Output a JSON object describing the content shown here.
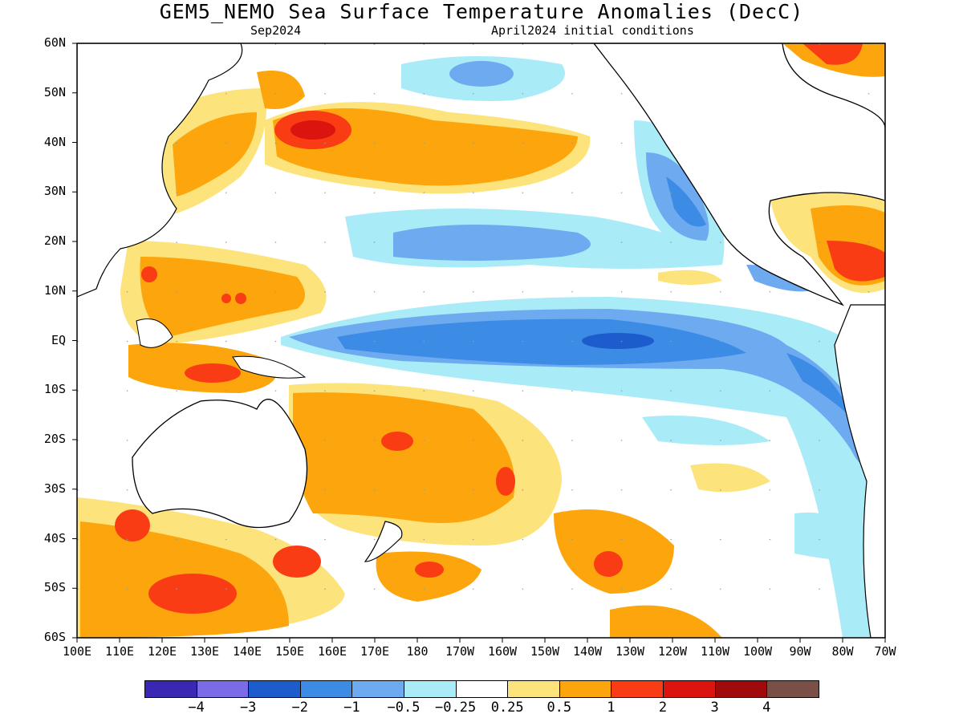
{
  "title": "GEM5_NEMO Sea Surface Temperature Anomalies (DecC)",
  "subtitle_left": "Sep2024",
  "subtitle_right": "April2024 initial conditions",
  "lat_labels": [
    "60N",
    "50N",
    "40N",
    "30N",
    "20N",
    "10N",
    "EQ",
    "10S",
    "20S",
    "30S",
    "40S",
    "50S",
    "60S"
  ],
  "lon_labels": [
    "100E",
    "110E",
    "120E",
    "130E",
    "140E",
    "150E",
    "160E",
    "170E",
    "180",
    "170W",
    "160W",
    "150W",
    "140W",
    "130W",
    "120W",
    "110W",
    "100W",
    "90W",
    "80W",
    "70W"
  ],
  "colorbar": {
    "colors": [
      "#3a28b4",
      "#7b6be6",
      "#1c5ccc",
      "#3c8ce6",
      "#6eaaf0",
      "#aaebf8",
      "#ffffff",
      "#fce37c",
      "#fca50c",
      "#fa3c14",
      "#dc1410",
      "#a00a0a",
      "#7a5046"
    ],
    "labels": [
      "−4",
      "−3",
      "−2",
      "−1",
      "−0.5",
      "−0.25",
      "0.25",
      "0.5",
      "1",
      "2",
      "3",
      "4"
    ]
  },
  "colors": {
    "dark_blue": "#1c5ccc",
    "mid_blue": "#3c8ce6",
    "light_blue": "#6eaaf0",
    "pale_blue": "#aaebf8",
    "yellow": "#fce37c",
    "orange": "#fca50c",
    "red": "#fa3c14",
    "dark_red": "#dc1410"
  }
}
